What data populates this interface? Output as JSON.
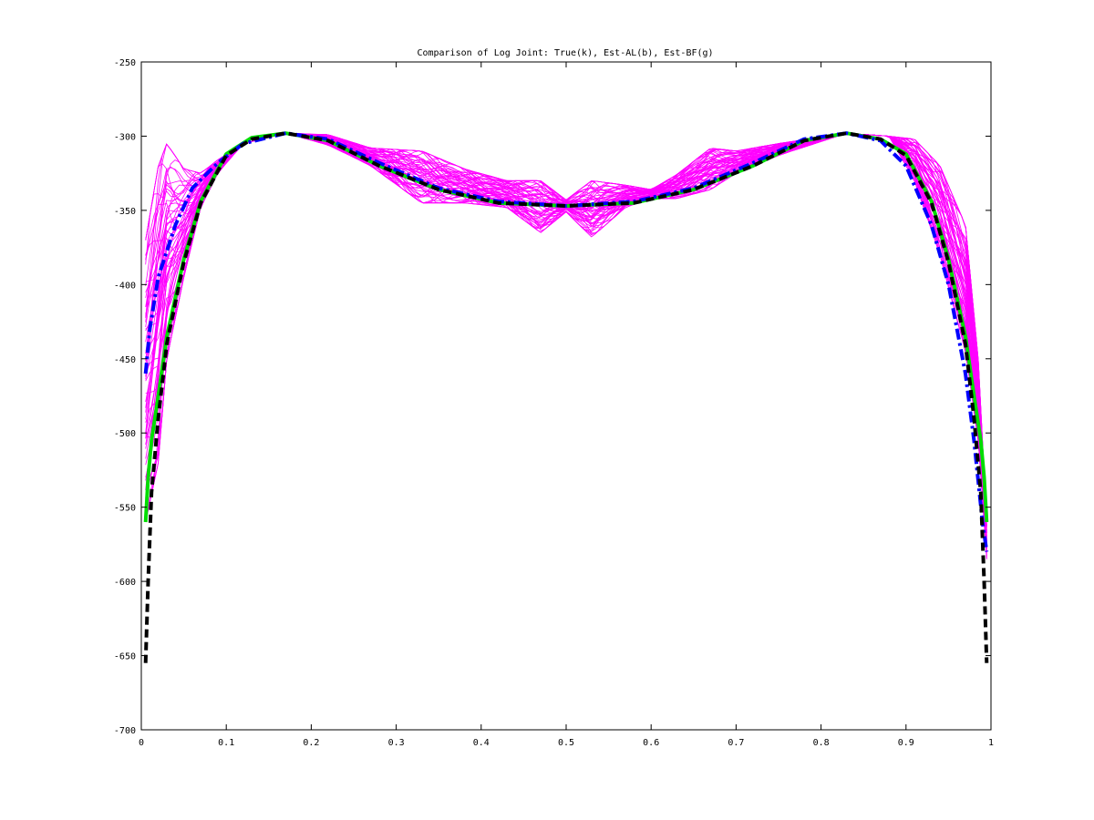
{
  "chart_data": {
    "type": "line",
    "title": "Comparison of Log Joint: True(k), Est-AL(b), Est-BF(g)",
    "xlabel": "",
    "ylabel": "",
    "xlim": [
      0,
      1
    ],
    "ylim": [
      -700,
      -250
    ],
    "xticks": [
      0,
      0.1,
      0.2,
      0.3,
      0.4,
      0.5,
      0.6,
      0.7,
      0.8,
      0.9,
      1
    ],
    "xtick_labels": [
      "0",
      "0.1",
      "0.2",
      "0.3",
      "0.4",
      "0.5",
      "0.6",
      "0.7",
      "0.8",
      "0.9",
      "1"
    ],
    "yticks": [
      -250,
      -300,
      -350,
      -400,
      -450,
      -500,
      -550,
      -600,
      -650,
      -700
    ],
    "ytick_labels": [
      "-250",
      "-300",
      "-350",
      "-400",
      "-450",
      "-500",
      "-550",
      "-600",
      "-650",
      "-700"
    ],
    "grid": false,
    "legend": "none",
    "series": [
      {
        "key": "true",
        "color": "#000000",
        "style": "dashed",
        "x": [
          0.005,
          0.008,
          0.012,
          0.02,
          0.03,
          0.05,
          0.07,
          0.1,
          0.13,
          0.17,
          0.22,
          0.28,
          0.35,
          0.42,
          0.5,
          0.58,
          0.65,
          0.72,
          0.78,
          0.83,
          0.87,
          0.9,
          0.93,
          0.95,
          0.97,
          0.98,
          0.988,
          0.992,
          0.995
        ],
        "y": [
          -655,
          -600,
          -540,
          -490,
          -440,
          -385,
          -345,
          -313,
          -302,
          -298,
          -303,
          -320,
          -336,
          -345,
          -347,
          -345,
          -336,
          -320,
          -303,
          -298,
          -302,
          -313,
          -345,
          -385,
          -440,
          -490,
          -540,
          -600,
          -655
        ]
      },
      {
        "key": "est-al",
        "color": "#0000ff",
        "style": "dashdot",
        "x": [
          0.005,
          0.01,
          0.02,
          0.04,
          0.06,
          0.09,
          0.12,
          0.17,
          0.22,
          0.28,
          0.35,
          0.42,
          0.5,
          0.58,
          0.65,
          0.72,
          0.78,
          0.83,
          0.87,
          0.9,
          0.93,
          0.95,
          0.97,
          0.98,
          0.99,
          0.995
        ],
        "y": [
          -460,
          -430,
          -395,
          -360,
          -335,
          -318,
          -305,
          -298,
          -302,
          -318,
          -335,
          -344,
          -347,
          -344,
          -335,
          -318,
          -302,
          -298,
          -303,
          -320,
          -360,
          -400,
          -460,
          -505,
          -560,
          -580
        ]
      },
      {
        "key": "est-bf",
        "color": "#00dd00",
        "style": "solid",
        "x": [
          0.005,
          0.008,
          0.012,
          0.02,
          0.03,
          0.05,
          0.07,
          0.1,
          0.13,
          0.17,
          0.22,
          0.28,
          0.35,
          0.42,
          0.5,
          0.58,
          0.65,
          0.72,
          0.78,
          0.83,
          0.87,
          0.9,
          0.93,
          0.95,
          0.97,
          0.98,
          0.988,
          0.992,
          0.995
        ],
        "y": [
          -560,
          -530,
          -505,
          -475,
          -435,
          -383,
          -344,
          -312,
          -301,
          -298,
          -303,
          -320,
          -336,
          -345,
          -347,
          -345,
          -336,
          -320,
          -303,
          -298,
          -302,
          -312,
          -344,
          -383,
          -435,
          -475,
          -505,
          -530,
          -560
        ]
      }
    ],
    "samples": {
      "color": "#ff00ff",
      "count": 60,
      "band_x": [
        0.005,
        0.02,
        0.03,
        0.05,
        0.07,
        0.09,
        0.12,
        0.17,
        0.22,
        0.27,
        0.33,
        0.38,
        0.43,
        0.47,
        0.5,
        0.53,
        0.57,
        0.6,
        0.63,
        0.67,
        0.7,
        0.75,
        0.83,
        0.88,
        0.91,
        0.94,
        0.97,
        0.985,
        0.995
      ],
      "band_lower": [
        -560,
        -520,
        -450,
        -395,
        -348,
        -325,
        -305,
        -298,
        -306,
        -320,
        -345,
        -345,
        -348,
        -365,
        -351,
        -368,
        -348,
        -342,
        -342,
        -336,
        -325,
        -313,
        -298,
        -300,
        -330,
        -380,
        -445,
        -505,
        -585
      ],
      "band_upper": [
        -370,
        -320,
        -305,
        -322,
        -325,
        -316,
        -305,
        -298,
        -299,
        -308,
        -310,
        -322,
        -330,
        -330,
        -343,
        -330,
        -333,
        -336,
        -326,
        -308,
        -310,
        -305,
        -298,
        -300,
        -302,
        -320,
        -360,
        -450,
        -560
      ]
    }
  }
}
